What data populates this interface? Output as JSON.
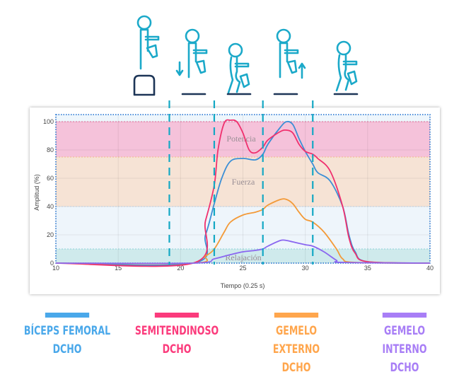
{
  "chart_data": {
    "type": "line",
    "xlabel": "Tiempo (0.25 s)",
    "ylabel": "Amplitud (%)",
    "xlim": [
      10,
      40
    ],
    "ylim": [
      0,
      105
    ],
    "xticks": [
      10,
      15,
      20,
      25,
      30,
      35,
      40
    ],
    "yticks": [
      0,
      20,
      40,
      60,
      80,
      100
    ],
    "grid": true,
    "bands": [
      {
        "label": "Potencia",
        "from": 75,
        "to": 100,
        "color": "#f5c2da",
        "edge": "#f06ea0"
      },
      {
        "label": "Fuerza",
        "from": 40,
        "to": 75,
        "color": "#f6e3d5",
        "edge": "#f3b98a"
      },
      {
        "label": "",
        "from": 10,
        "to": 40,
        "color": "#eef5fb",
        "edge": "#c9ddf0"
      },
      {
        "label": "Relajación",
        "from": 0,
        "to": 10,
        "color": "#cfeaec",
        "edge": "#8fd3d8"
      }
    ],
    "phase_lines_x": [
      19.1,
      22.7,
      26.6,
      30.6
    ],
    "phase_line_color": "#14a8c4",
    "series": [
      {
        "name": "BÍCEPS FEMORAL DCHO",
        "color": "#3b8fd6",
        "x": [
          10,
          21,
          22,
          22.7,
          23.3,
          24,
          25,
          26,
          26.6,
          27,
          28,
          28.5,
          29,
          29.5,
          30,
          30.6,
          31,
          32,
          33,
          33.5,
          34,
          35,
          40
        ],
        "y": [
          0,
          0,
          20,
          42,
          60,
          72,
          74,
          73,
          77,
          84,
          96,
          100,
          98,
          88,
          79,
          70,
          64,
          58,
          40,
          20,
          8,
          1,
          0
        ]
      },
      {
        "name": "SEMITENDINOSO DCHO",
        "color": "#f0306e",
        "x": [
          10,
          21,
          22,
          22.7,
          23,
          23.5,
          24,
          24.5,
          25,
          25.5,
          26,
          26.6,
          27,
          28,
          28.5,
          29,
          29.5,
          30,
          30.6,
          31,
          32,
          33,
          33.5,
          34,
          35,
          40
        ],
        "y": [
          0,
          0,
          30,
          55,
          80,
          99,
          101,
          100,
          92,
          80,
          78,
          82,
          87,
          93,
          94,
          92,
          84,
          79,
          77,
          74,
          65,
          40,
          18,
          7,
          1,
          0
        ]
      },
      {
        "name": "GEMELO EXTERNO DCHO",
        "color": "#f39a38",
        "x": [
          10,
          21,
          22,
          22.7,
          23.5,
          24,
          25,
          26,
          26.6,
          27,
          28,
          28.5,
          29,
          29.5,
          30,
          30.6,
          31.5,
          32.5,
          33,
          34,
          40
        ],
        "y": [
          0,
          0,
          5,
          10,
          22,
          29,
          34,
          36,
          38,
          41,
          45,
          45,
          42,
          36,
          31,
          29,
          22,
          10,
          3,
          0.5,
          0
        ]
      },
      {
        "name": "GEMELO INTERNO DCHO",
        "color": "#8a66f0",
        "x": [
          10,
          21,
          22.7,
          24,
          25,
          26,
          26.6,
          27,
          28,
          28.5,
          29,
          30,
          30.6,
          31.5,
          32.5,
          33,
          40
        ],
        "y": [
          0,
          0,
          3,
          6,
          8,
          9,
          10,
          12,
          16,
          16,
          15,
          13,
          12,
          8,
          2,
          0.5,
          0
        ]
      }
    ]
  },
  "legend": [
    {
      "line1": "BÍCEPS FEMORAL",
      "line2": "DCHO",
      "color": "#4aa8ea"
    },
    {
      "line1": "SEMITENDINOSO",
      "line2": "DCHO",
      "color": "#fb3b7c"
    },
    {
      "line1": "GEMELO EXTERNO",
      "line2": "DCHO",
      "color": "#ffa64d"
    },
    {
      "line1": "GEMELO INTERNO",
      "line2": "DCHO",
      "color": "#a87ef6"
    }
  ],
  "figure_color": "#1ba9c9",
  "ground_color": "#1d3557"
}
